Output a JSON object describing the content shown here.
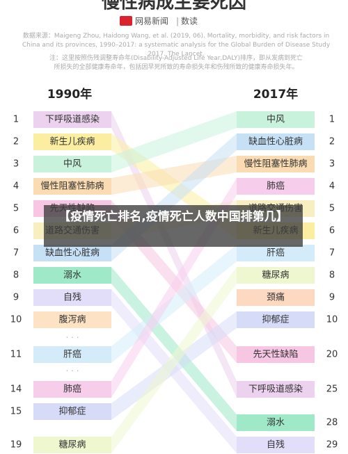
{
  "header": {
    "title": "慢性病成主要死因",
    "logo": "网易新闻",
    "brand": "数读"
  },
  "source": "数据来源：Maigeng Zhou, Haidong Wang, et al. (2019, 06). Mortality, morbidity, and risk factors in China and its provinces, 1990–2017: a systematic analysis for the Global Burden of Disease Study 2017. The Lancet.",
  "note": [
    "注：这里按照伤残调整寿命年(Disability-Adjusted Life Year,DALY)排序，即从发病到死亡",
    "所损失的全部健康寿命年，包括因早死所致的寿命损失年和伤残所致的健康寿命损失年。"
  ],
  "left": {
    "year": "1990年",
    "items": [
      {
        "rank": 1,
        "label": "下呼吸道感染",
        "color": "#ecd2ee"
      },
      {
        "rank": 2,
        "label": "新生儿疾病",
        "color": "#fbeea0"
      },
      {
        "rank": 3,
        "label": "中风",
        "color": "#c9f2dc"
      },
      {
        "rank": 4,
        "label": "慢性阻塞性肺病",
        "color": "#fbdcb2"
      },
      {
        "rank": 5,
        "label": "先天性缺陷",
        "color": "#f6c6e2"
      },
      {
        "rank": 6,
        "label": "道路交通伤害",
        "color": "#f7efc0"
      },
      {
        "rank": 7,
        "label": "缺血性心脏病",
        "color": "#c6e0f6"
      },
      {
        "rank": 8,
        "label": "溺水",
        "color": "#9fe8c8"
      },
      {
        "rank": 9,
        "label": "自残",
        "color": "#e2defa"
      },
      {
        "rank": 10,
        "label": "腹泻病",
        "color": "#fde3c4"
      },
      {
        "rank": 11,
        "label": "肝癌",
        "color": "#d4ecf9"
      },
      {
        "rank": 14,
        "label": "肺癌",
        "color": "#f7cdec"
      },
      {
        "rank": 15,
        "label": "抑郁症",
        "color": "#d6dcf8"
      },
      {
        "rank": 19,
        "label": "糖尿病",
        "color": "#eef7cf"
      }
    ]
  },
  "right": {
    "year": "2017年",
    "items": [
      {
        "rank": 1,
        "label": "中风",
        "color": "#c9f2dc"
      },
      {
        "rank": 2,
        "label": "缺血性心脏病",
        "color": "#c6e0f6"
      },
      {
        "rank": 3,
        "label": "慢性阻塞性肺病",
        "color": "#fbdcb2"
      },
      {
        "rank": 4,
        "label": "肺癌",
        "color": "#f7cdec"
      },
      {
        "rank": 5,
        "label": "道路交通伤害",
        "color": "#f7efc0"
      },
      {
        "rank": 6,
        "label": "新生儿疾病",
        "color": "#fbeea0"
      },
      {
        "rank": 7,
        "label": "肝癌",
        "color": "#d4ecf9"
      },
      {
        "rank": 8,
        "label": "糖尿病",
        "color": "#eef7cf"
      },
      {
        "rank": 9,
        "label": "颈痛",
        "color": "#fdd9c2"
      },
      {
        "rank": 10,
        "label": "抑郁症",
        "color": "#d6dcf8"
      },
      {
        "rank": 20,
        "label": "先天性缺陷",
        "color": "#f6c6e2"
      },
      {
        "rank": 25,
        "label": "下呼吸道感染",
        "color": "#ecd2ee"
      },
      {
        "rank": 28,
        "label": "溺水",
        "color": "#9fe8c8"
      },
      {
        "rank": 29,
        "label": "自残",
        "color": "#e2defa"
      }
    ]
  },
  "overlay": "【疫情死亡排名,疫情死亡人数中国排第几】"
}
